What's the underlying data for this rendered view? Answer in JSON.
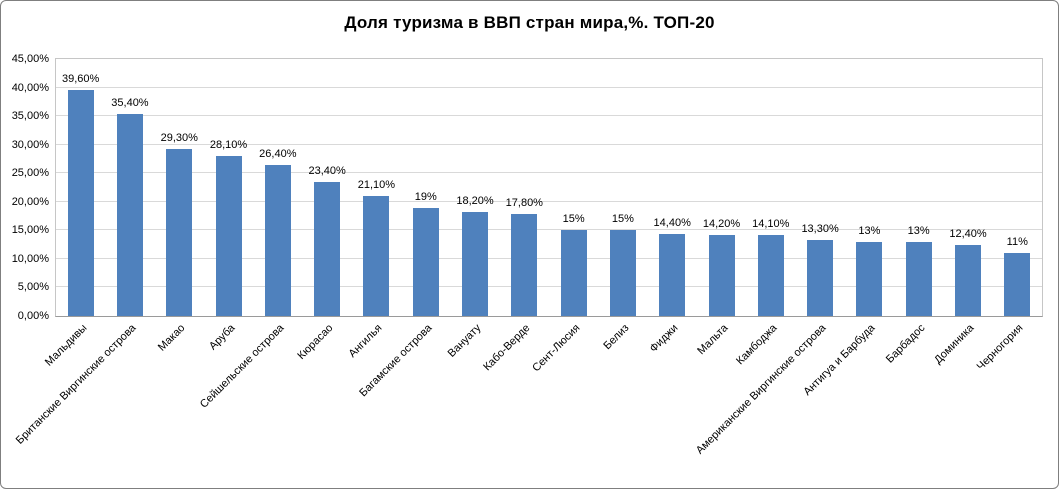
{
  "title": "Доля туризма в ВВП стран мира,%. ТОП-20",
  "chart_data": {
    "type": "bar",
    "title": "Доля туризма в ВВП стран мира,%. ТОП-20",
    "categories": [
      "Мальдивы",
      "Британские Виргинские острова",
      "Макао",
      "Аруба",
      "Сейшельские острова",
      "Кюрасао",
      "Ангилья",
      "Багамские острова",
      "Вануату",
      "Кабо-Верде",
      "Сент-Люсия",
      "Белиз",
      "Фиджи",
      "Мальта",
      "Камбоджа",
      "Американские Виргинские острова",
      "Антигуа и Барбуда",
      "Барбадос",
      "Доминика",
      "Черногория"
    ],
    "values": [
      39.6,
      35.4,
      29.3,
      28.1,
      26.4,
      23.4,
      21.1,
      19,
      18.2,
      17.8,
      15,
      15,
      14.4,
      14.2,
      14.1,
      13.3,
      13,
      13,
      12.4,
      11
    ],
    "value_labels": [
      "39,60%",
      "35,40%",
      "29,30%",
      "28,10%",
      "26,40%",
      "23,40%",
      "21,10%",
      "19%",
      "18,20%",
      "17,80%",
      "15%",
      "15%",
      "14,40%",
      "14,20%",
      "14,10%",
      "13,30%",
      "13%",
      "13%",
      "12,40%",
      "11%"
    ],
    "xlabel": "",
    "ylabel": "",
    "ylim": [
      0,
      45
    ],
    "ytick_step": 5,
    "ytick_labels": [
      "0,00%",
      "5,00%",
      "10,00%",
      "15,00%",
      "20,00%",
      "25,00%",
      "30,00%",
      "35,00%",
      "40,00%",
      "45,00%"
    ],
    "grid": true,
    "legend": "none",
    "bar_color": "#4F81BD"
  }
}
